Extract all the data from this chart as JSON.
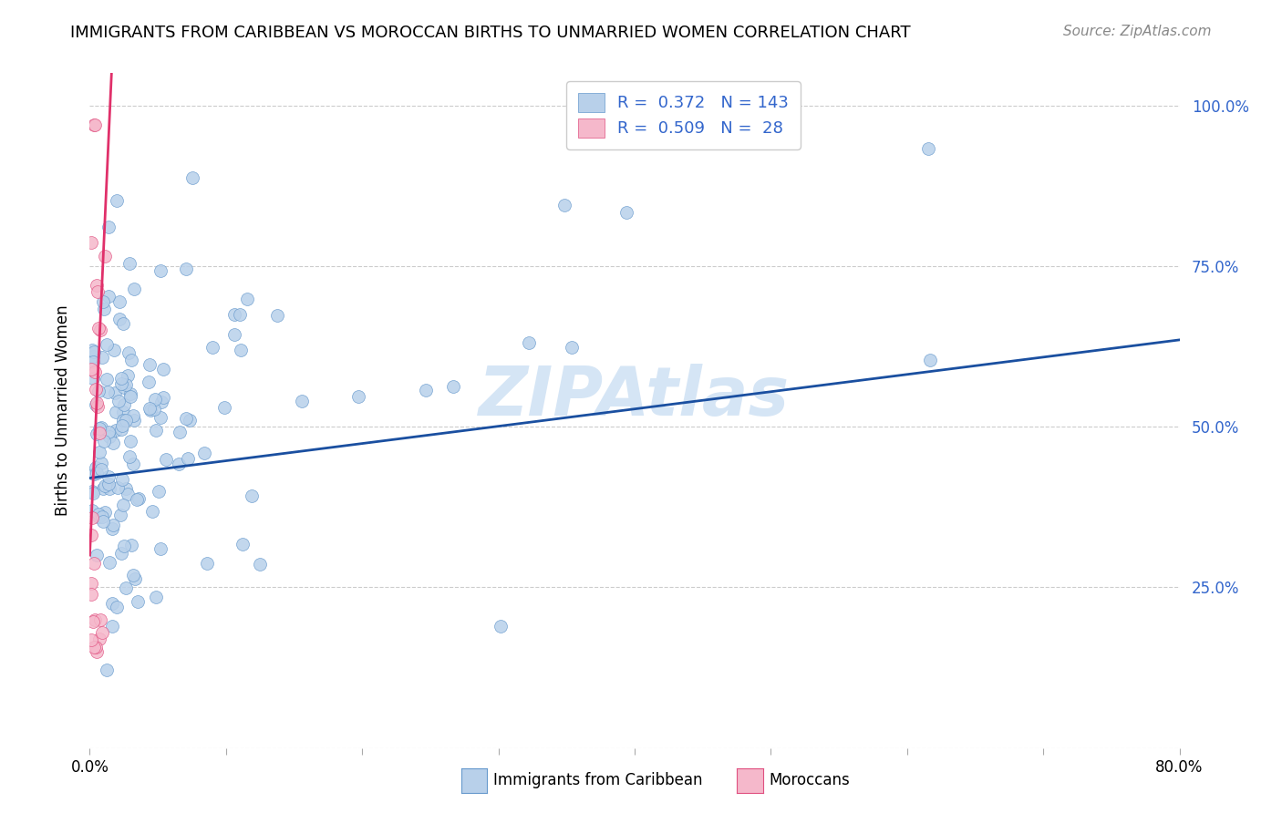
{
  "title": "IMMIGRANTS FROM CARIBBEAN VS MOROCCAN BIRTHS TO UNMARRIED WOMEN CORRELATION CHART",
  "source": "Source: ZipAtlas.com",
  "ylabel": "Births to Unmarried Women",
  "xlim": [
    0.0,
    0.8
  ],
  "ylim": [
    0.0,
    1.05
  ],
  "r_caribbean": 0.372,
  "n_caribbean": 143,
  "r_moroccan": 0.509,
  "n_moroccan": 28,
  "caribbean_fill": "#b8d0ea",
  "moroccan_fill": "#f5b8cb",
  "caribbean_edge": "#6699cc",
  "moroccan_edge": "#e05080",
  "trendline_caribbean": "#1a4fa0",
  "trendline_moroccan": "#e0306a",
  "watermark_color": "#d5e5f5",
  "right_tick_color": "#3366cc",
  "grid_color": "#cccccc",
  "title_fontsize": 13,
  "source_fontsize": 11,
  "legend_fontsize": 13,
  "axis_label_fontsize": 12,
  "tick_fontsize": 12,
  "trendline_car_x0": 0.0,
  "trendline_car_y0": 0.42,
  "trendline_car_x1": 0.8,
  "trendline_car_y1": 0.635,
  "trendline_mor_x0": 0.0,
  "trendline_mor_y0": 0.3,
  "trendline_mor_x1": 0.016,
  "trendline_mor_y1": 1.05
}
